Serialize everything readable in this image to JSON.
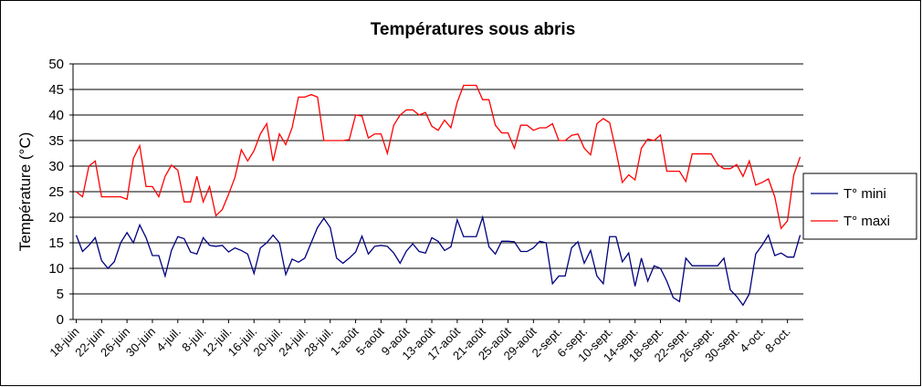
{
  "chart_data": {
    "type": "line",
    "title": "Températures sous abris",
    "y_label": "Température (°C)",
    "categories": [
      "18-juin",
      null,
      null,
      null,
      "22-juin",
      null,
      null,
      null,
      "26-juin",
      null,
      null,
      null,
      "30-juin",
      null,
      null,
      null,
      "4-juil.",
      null,
      null,
      null,
      "8-juil.",
      null,
      null,
      null,
      "12-juil.",
      null,
      null,
      null,
      "16-juil.",
      null,
      null,
      null,
      "20-juil.",
      null,
      null,
      null,
      "24-juil.",
      null,
      null,
      null,
      "28-juil.",
      null,
      null,
      null,
      "1-août",
      null,
      null,
      null,
      "5-août",
      null,
      null,
      null,
      "9-août",
      null,
      null,
      null,
      "13-août",
      null,
      null,
      null,
      "17-août",
      null,
      null,
      null,
      "21-août",
      null,
      null,
      null,
      "25-août",
      null,
      null,
      null,
      "29-août",
      null,
      null,
      null,
      "2-sept.",
      null,
      null,
      null,
      "6-sept.",
      null,
      null,
      null,
      "10-sept.",
      null,
      null,
      null,
      "14-sept.",
      null,
      null,
      null,
      "18-sept.",
      null,
      null,
      null,
      "22-sept.",
      null,
      null,
      null,
      "26-sept.",
      null,
      null,
      null,
      "30-sept.",
      null,
      null,
      null,
      "4-oct.",
      null,
      null,
      null,
      "8-oct.",
      null,
      null
    ],
    "series": [
      {
        "name": "T° mini",
        "color": "#000080",
        "values": [
          16.5,
          13.3,
          14.5,
          16,
          11.5,
          10,
          11.3,
          15,
          17,
          15,
          18.5,
          16,
          12.5,
          12.5,
          8.5,
          13.5,
          16.2,
          15.8,
          13.2,
          12.8,
          16,
          14.5,
          14.3,
          14.5,
          13.2,
          14,
          13.5,
          12.8,
          9,
          14,
          15,
          16.5,
          15,
          8.8,
          11.8,
          11.2,
          12,
          15,
          18,
          19.8,
          18,
          12,
          11,
          12,
          13.2,
          16.3,
          12.8,
          14.3,
          14.5,
          14.3,
          13,
          11,
          13.4,
          14.8,
          13.3,
          13,
          16,
          15.3,
          13.5,
          14.2,
          19.5,
          16.2,
          16.2,
          16.2,
          20,
          14.2,
          12.8,
          15.3,
          15.3,
          15.2,
          13.3,
          13.3,
          14,
          15.3,
          15,
          7,
          8.5,
          8.5,
          14,
          15.2,
          11,
          13.5,
          8.5,
          7,
          16.2,
          16.2,
          11.3,
          13,
          6.5,
          12,
          7.5,
          10.5,
          10,
          7.5,
          4.3,
          3.5,
          12,
          10.5,
          10.5,
          10.5,
          10.5,
          10.5,
          12,
          5.8,
          4.5,
          2.8,
          5,
          12.8,
          14.5,
          16.5,
          12.5,
          13,
          12.2,
          12.2,
          16.5
        ]
      },
      {
        "name": "T° maxi",
        "color": "#ff0000",
        "values": [
          25,
          24,
          30,
          31,
          24,
          24,
          24,
          24,
          23.5,
          31.5,
          34,
          26,
          26,
          24,
          28,
          30.2,
          29.2,
          23,
          23,
          28,
          23,
          26,
          20.3,
          21.5,
          24.5,
          27.8,
          33.2,
          31,
          33,
          36.3,
          38.3,
          31,
          36.3,
          34.2,
          37.5,
          43.5,
          43.5,
          44,
          43.5,
          35,
          35,
          35,
          35,
          35.2,
          40,
          39.8,
          35.5,
          36.3,
          36.3,
          32.5,
          38,
          40,
          41,
          41,
          40,
          40.5,
          37.8,
          37,
          39,
          37.5,
          42.5,
          45.8,
          45.8,
          45.8,
          43,
          43,
          38,
          36.5,
          36.5,
          33.5,
          38,
          38,
          37,
          37.5,
          37.5,
          38.3,
          35,
          35,
          36,
          36.3,
          33.5,
          32.2,
          38.3,
          39.3,
          38.5,
          33,
          26.8,
          28.3,
          27.3,
          33.5,
          35.3,
          35,
          36.1,
          29,
          29,
          29,
          27,
          32.4,
          32.4,
          32.4,
          32.4,
          30.3,
          29.5,
          29.5,
          30.3,
          28,
          31,
          26.3,
          26.8,
          27.5,
          24,
          17.8,
          19.3,
          28.3,
          31.8
        ]
      }
    ],
    "ylim": [
      0,
      50
    ],
    "yticks": [
      0,
      5,
      10,
      15,
      20,
      25,
      30,
      35,
      40,
      45,
      50
    ],
    "grid": true,
    "legend": "right"
  }
}
